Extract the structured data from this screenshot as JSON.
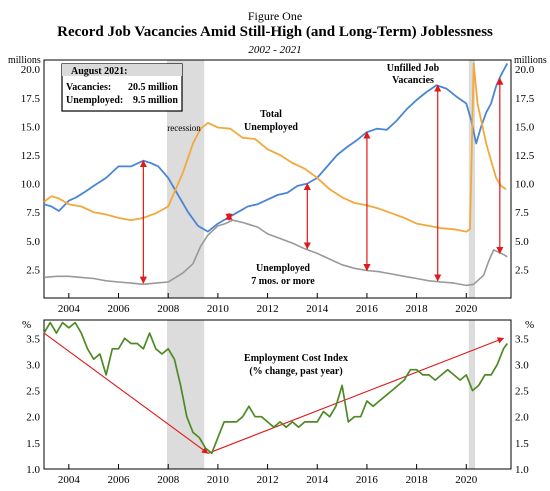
{
  "header": {
    "figure_label": "Figure One",
    "title": "Record Job Vacancies Amid Still-High (and Long-Term) Joblessness",
    "subtitle": "2002 - 2021"
  },
  "colors": {
    "vacancies": "#4a86d4",
    "unemployed": "#f2a93b",
    "longterm": "#999999",
    "eci": "#4e8a24",
    "recession": "#dcdcdc",
    "arrow": "#e0191a"
  },
  "chart_data": [
    {
      "type": "line",
      "axis_unit_left": "millions",
      "axis_unit_right": "millions",
      "xlim": [
        2003.0,
        2021.8
      ],
      "ylim": [
        0,
        20.8
      ],
      "x_ticks": [
        2004,
        2006,
        2008,
        2010,
        2012,
        2014,
        2016,
        2018,
        2020
      ],
      "y_ticks": [
        2.5,
        5.0,
        7.5,
        10.0,
        12.5,
        15.0,
        17.5,
        20.0
      ],
      "y_tick_labels": [
        "2.5",
        "5.0",
        "7.5",
        "10.0",
        "12.5",
        "15.0",
        "17.5",
        "20.0"
      ],
      "recessions": [
        [
          2007.95,
          2009.45
        ],
        [
          2020.1,
          2020.35
        ]
      ],
      "legend_box": {
        "heading": "August 2021:",
        "rows": [
          {
            "label": "Vacancies:",
            "value": "20.5 million"
          },
          {
            "label": "Unemployed:",
            "value": "9.5 million"
          }
        ]
      },
      "annotations": {
        "recession": "recession",
        "total_unemployed": [
          "Total",
          "Unemployed"
        ],
        "unfilled": [
          "Unfilled Job",
          "Vacancies"
        ],
        "longterm": [
          "Unemployed",
          "7 mos. or more"
        ]
      },
      "series": [
        {
          "key": "vacancies",
          "name": "Unfilled Job Vacancies",
          "x": [
            2003.0,
            2003.3,
            2003.6,
            2004.0,
            2004.3,
            2004.6,
            2005.0,
            2005.5,
            2006.0,
            2006.5,
            2007.0,
            2007.3,
            2007.6,
            2008.0,
            2008.4,
            2008.8,
            2009.2,
            2009.6,
            2010.0,
            2010.4,
            2010.8,
            2011.2,
            2011.6,
            2012.0,
            2012.4,
            2012.8,
            2013.2,
            2013.6,
            2014.0,
            2014.4,
            2014.8,
            2015.2,
            2015.6,
            2016.0,
            2016.4,
            2016.8,
            2017.2,
            2017.6,
            2018.0,
            2018.4,
            2018.8,
            2019.2,
            2019.6,
            2020.0,
            2020.2,
            2020.4,
            2020.6,
            2020.8,
            2021.0,
            2021.2,
            2021.4,
            2021.65
          ],
          "y": [
            8.2,
            8.0,
            7.6,
            8.5,
            8.8,
            9.2,
            9.8,
            10.5,
            11.5,
            11.5,
            12.0,
            11.8,
            11.5,
            10.5,
            9.0,
            7.5,
            6.3,
            5.8,
            6.5,
            7.0,
            7.5,
            8.0,
            8.2,
            8.6,
            9.0,
            9.2,
            9.8,
            10.0,
            10.5,
            11.5,
            12.5,
            13.2,
            13.8,
            14.5,
            14.8,
            14.7,
            15.5,
            16.5,
            17.3,
            18.0,
            18.6,
            18.3,
            17.6,
            17.0,
            15.5,
            13.5,
            15.0,
            16.2,
            17.0,
            18.5,
            19.5,
            20.5
          ]
        },
        {
          "key": "unemployed",
          "name": "Total Unemployed",
          "x": [
            2003.0,
            2003.3,
            2003.6,
            2004.0,
            2004.5,
            2005.0,
            2005.5,
            2006.0,
            2006.5,
            2007.0,
            2007.5,
            2008.0,
            2008.3,
            2008.6,
            2009.0,
            2009.3,
            2009.6,
            2010.0,
            2010.5,
            2011.0,
            2011.5,
            2012.0,
            2012.5,
            2013.0,
            2013.5,
            2014.0,
            2014.5,
            2015.0,
            2015.5,
            2016.0,
            2016.5,
            2017.0,
            2017.5,
            2018.0,
            2018.5,
            2019.0,
            2019.5,
            2020.0,
            2020.15,
            2020.3,
            2020.45,
            2020.6,
            2020.8,
            2021.0,
            2021.2,
            2021.4,
            2021.6
          ],
          "y": [
            8.4,
            8.9,
            8.7,
            8.2,
            8.0,
            7.5,
            7.3,
            7.0,
            6.8,
            7.0,
            7.4,
            8.0,
            9.5,
            11.0,
            13.5,
            14.8,
            15.3,
            14.9,
            14.8,
            14.0,
            13.9,
            13.0,
            12.5,
            11.8,
            11.3,
            10.5,
            9.5,
            8.8,
            8.3,
            8.1,
            7.8,
            7.4,
            7.0,
            6.5,
            6.3,
            6.1,
            6.0,
            5.8,
            6.0,
            20.5,
            17.0,
            15.5,
            13.5,
            12.0,
            10.5,
            9.8,
            9.5
          ]
        },
        {
          "key": "longterm",
          "name": "Unemployed 7 mos. or more",
          "x": [
            2003.0,
            2003.5,
            2004.0,
            2004.5,
            2005.0,
            2005.5,
            2006.0,
            2006.5,
            2007.0,
            2007.5,
            2008.0,
            2008.3,
            2008.6,
            2009.0,
            2009.3,
            2009.6,
            2010.0,
            2010.3,
            2010.6,
            2011.0,
            2011.3,
            2011.6,
            2012.0,
            2012.5,
            2013.0,
            2013.5,
            2014.0,
            2014.5,
            2015.0,
            2015.5,
            2016.0,
            2016.5,
            2017.0,
            2017.5,
            2018.0,
            2018.5,
            2019.0,
            2019.5,
            2020.0,
            2020.3,
            2020.5,
            2020.7,
            2020.9,
            2021.1,
            2021.3,
            2021.5,
            2021.65
          ],
          "y": [
            1.8,
            1.9,
            1.9,
            1.8,
            1.7,
            1.5,
            1.4,
            1.3,
            1.2,
            1.3,
            1.4,
            1.8,
            2.2,
            3.0,
            4.5,
            5.5,
            6.3,
            6.5,
            6.8,
            6.6,
            6.4,
            6.2,
            5.6,
            5.2,
            4.8,
            4.3,
            3.9,
            3.4,
            2.9,
            2.6,
            2.4,
            2.3,
            2.1,
            1.9,
            1.7,
            1.5,
            1.4,
            1.3,
            1.1,
            1.2,
            1.6,
            2.0,
            3.2,
            4.2,
            4.0,
            3.8,
            3.6
          ]
        }
      ],
      "arrows": [
        {
          "x": 2007.0,
          "from": 1.3,
          "to": 12.0
        },
        {
          "x": 2010.45,
          "from": 6.8,
          "to": 7.4
        },
        {
          "x": 2013.6,
          "from": 4.3,
          "to": 10.0
        },
        {
          "x": 2016.0,
          "from": 2.4,
          "to": 14.5
        },
        {
          "x": 2018.85,
          "from": 1.5,
          "to": 18.6
        },
        {
          "x": 2021.35,
          "from": 3.9,
          "to": 19.2
        }
      ]
    },
    {
      "type": "line",
      "axis_unit_left": "%",
      "axis_unit_right": "%",
      "xlim": [
        2003.0,
        2021.8
      ],
      "ylim": [
        1.0,
        3.85
      ],
      "x_ticks": [
        2004,
        2006,
        2008,
        2010,
        2012,
        2014,
        2016,
        2018,
        2020
      ],
      "y_ticks": [
        1.0,
        1.5,
        2.0,
        2.5,
        3.0,
        3.5
      ],
      "y_tick_labels": [
        "1.0",
        "1.5",
        "2.0",
        "2.5",
        "3.0",
        "3.5"
      ],
      "recessions": [
        [
          2007.95,
          2009.45
        ],
        [
          2020.1,
          2020.35
        ]
      ],
      "annotation": [
        "Employment Cost Index",
        "(% change, past year)"
      ],
      "series": [
        {
          "key": "eci",
          "name": "Employment Cost Index",
          "x": [
            2003.0,
            2003.25,
            2003.5,
            2003.75,
            2004.0,
            2004.25,
            2004.5,
            2004.75,
            2005.0,
            2005.25,
            2005.5,
            2005.75,
            2006.0,
            2006.25,
            2006.5,
            2006.75,
            2007.0,
            2007.25,
            2007.5,
            2007.75,
            2008.0,
            2008.25,
            2008.5,
            2008.75,
            2009.0,
            2009.25,
            2009.5,
            2009.75,
            2010.0,
            2010.25,
            2010.5,
            2010.75,
            2011.0,
            2011.25,
            2011.5,
            2011.75,
            2012.0,
            2012.25,
            2012.5,
            2012.75,
            2013.0,
            2013.25,
            2013.5,
            2013.75,
            2014.0,
            2014.25,
            2014.5,
            2014.75,
            2015.0,
            2015.25,
            2015.5,
            2015.75,
            2016.0,
            2016.25,
            2016.5,
            2016.75,
            2017.0,
            2017.25,
            2017.5,
            2017.75,
            2018.0,
            2018.25,
            2018.5,
            2018.75,
            2019.0,
            2019.25,
            2019.5,
            2019.75,
            2020.0,
            2020.25,
            2020.5,
            2020.75,
            2021.0,
            2021.25,
            2021.5,
            2021.65
          ],
          "y": [
            3.6,
            3.8,
            3.6,
            3.8,
            3.7,
            3.8,
            3.6,
            3.3,
            3.1,
            3.2,
            2.8,
            3.3,
            3.3,
            3.5,
            3.4,
            3.4,
            3.3,
            3.6,
            3.3,
            3.2,
            3.3,
            3.1,
            2.6,
            2.0,
            1.7,
            1.6,
            1.4,
            1.3,
            1.6,
            1.9,
            1.9,
            1.9,
            2.0,
            2.2,
            2.0,
            2.0,
            1.9,
            1.8,
            1.9,
            1.8,
            1.9,
            1.8,
            1.9,
            1.9,
            1.9,
            2.1,
            2.0,
            2.2,
            2.6,
            1.9,
            2.0,
            2.0,
            2.3,
            2.2,
            2.3,
            2.4,
            2.5,
            2.6,
            2.7,
            2.9,
            2.9,
            2.8,
            2.8,
            2.7,
            2.8,
            2.9,
            2.8,
            2.7,
            2.8,
            2.5,
            2.6,
            2.8,
            2.8,
            3.0,
            3.3,
            3.4
          ]
        }
      ],
      "trend_arrows": [
        {
          "from": [
            2003.0,
            3.6
          ],
          "to": [
            2009.6,
            1.3
          ]
        },
        {
          "from": [
            2009.6,
            1.3
          ],
          "to": [
            2021.5,
            3.5
          ]
        }
      ]
    }
  ]
}
